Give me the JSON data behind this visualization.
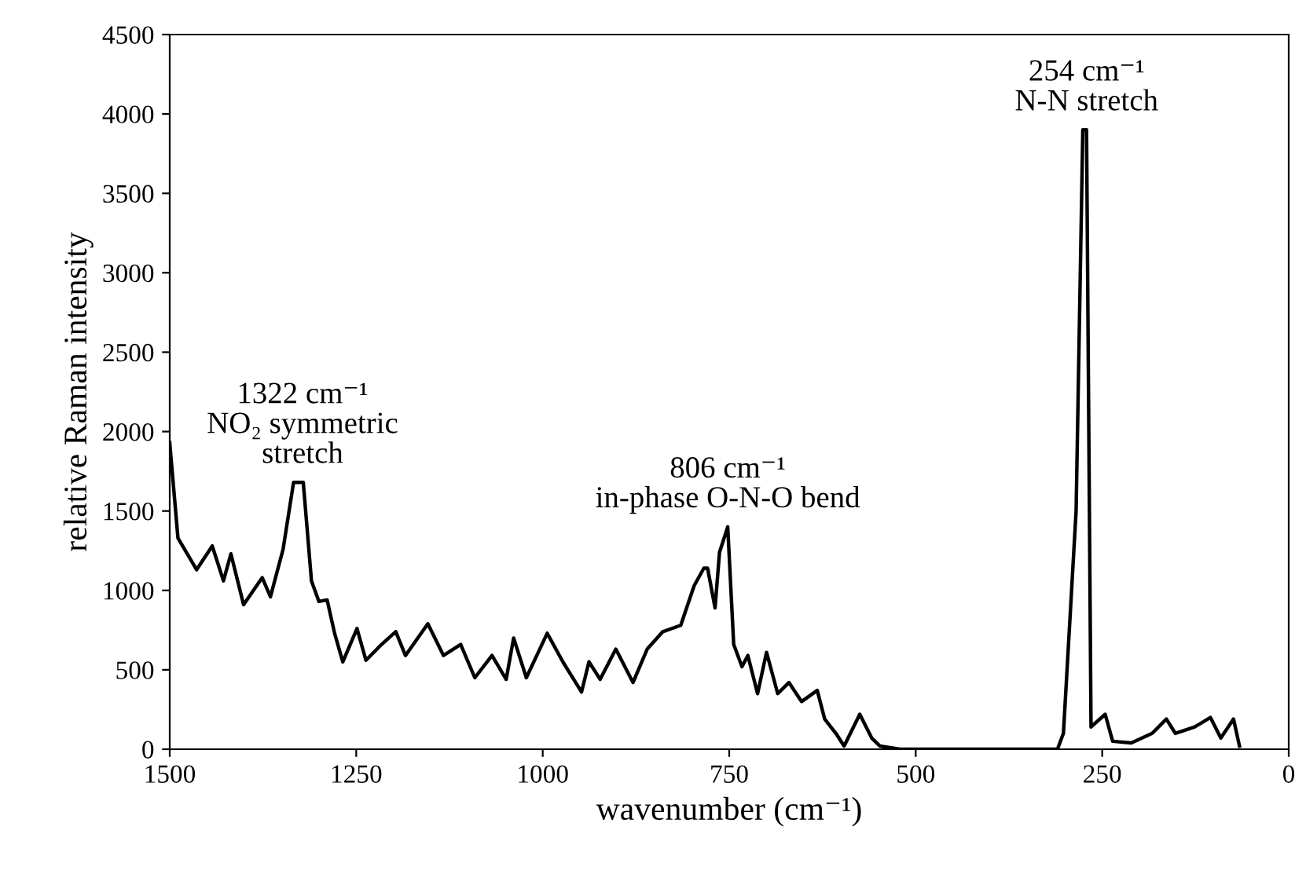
{
  "chart_data": {
    "type": "line",
    "xlabel": "wavenumber (cm⁻¹)",
    "ylabel": "relative Raman intensity",
    "xlim": [
      1500,
      0
    ],
    "xticks": [
      1500,
      1250,
      1000,
      750,
      500,
      250,
      0
    ],
    "ylim": [
      0,
      4500
    ],
    "yticks": [
      0,
      500,
      1000,
      1500,
      2000,
      2500,
      3000,
      3500,
      4000,
      4500
    ],
    "grid": false,
    "marker": "none",
    "line_style": "solid",
    "series": [
      {
        "color": "#000000",
        "x": [
          1500,
          1489,
          1464,
          1443,
          1428,
          1418,
          1401,
          1376,
          1365,
          1348,
          1334,
          1321,
          1310,
          1300,
          1289,
          1279,
          1268,
          1249,
          1237,
          1216,
          1197,
          1184,
          1154,
          1133,
          1110,
          1091,
          1068,
          1049,
          1039,
          1022,
          994,
          973,
          948,
          938,
          923,
          902,
          879,
          860,
          839,
          815,
          797,
          784,
          779,
          769,
          763,
          752,
          744,
          733,
          725,
          712,
          700,
          685,
          670,
          653,
          632,
          622,
          607,
          596,
          575,
          559,
          548,
          521,
          310,
          302,
          285,
          276,
          271,
          265,
          246,
          236,
          211,
          183,
          164,
          152,
          126,
          105,
          91,
          74,
          66
        ],
        "values": [
          1930,
          1330,
          1130,
          1280,
          1060,
          1230,
          910,
          1080,
          960,
          1260,
          1680,
          1680,
          1060,
          930,
          940,
          730,
          550,
          760,
          560,
          660,
          740,
          590,
          790,
          590,
          660,
          450,
          590,
          440,
          700,
          450,
          730,
          550,
          360,
          550,
          440,
          630,
          420,
          630,
          740,
          780,
          1030,
          1140,
          1140,
          890,
          1240,
          1400,
          660,
          520,
          590,
          350,
          610,
          350,
          420,
          300,
          370,
          190,
          100,
          20,
          220,
          70,
          20,
          0,
          0,
          100,
          1500,
          3900,
          3900,
          140,
          220,
          50,
          40,
          100,
          190,
          100,
          140,
          200,
          70,
          190,
          20
        ]
      }
    ],
    "annotations": [
      {
        "text": "1322 cm⁻¹\nNO₂ symmetric\nstretch",
        "x": 1322,
        "y": 1680
      },
      {
        "text": "806 cm⁻¹\nin-phase O-N-O bend",
        "x": 752,
        "y": 1400
      },
      {
        "text": "254 cm⁻¹\nN-N stretch",
        "x": 271,
        "y": 3900
      }
    ]
  }
}
